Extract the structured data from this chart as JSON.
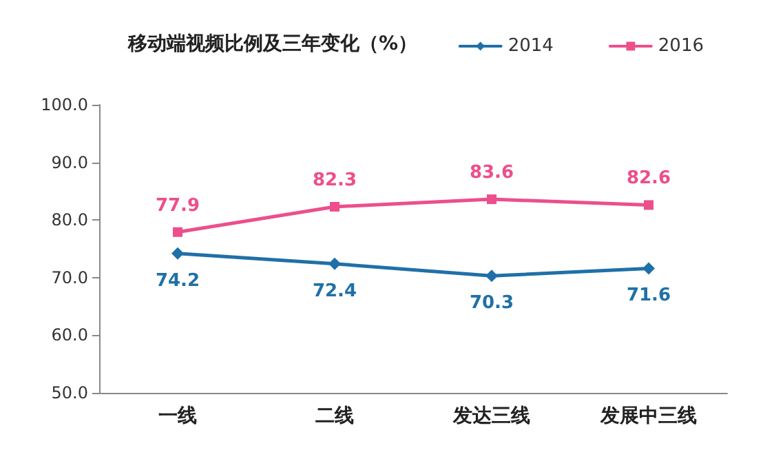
{
  "chart_data": {
    "type": "line",
    "title": "移动端视频比例及三年变化（%）",
    "categories": [
      "一线",
      "二线",
      "发达三线",
      "发展中三线"
    ],
    "series": [
      {
        "name": "2014",
        "color": "#1f70a8",
        "marker": "diamond",
        "values": [
          74.2,
          72.4,
          70.3,
          71.6
        ]
      },
      {
        "name": "2016",
        "color": "#ec4f8c",
        "marker": "square",
        "values": [
          77.9,
          82.3,
          83.6,
          82.6
        ]
      }
    ],
    "ylim": [
      50,
      100
    ],
    "yticks": [
      {
        "value": 50,
        "label": "50.0"
      },
      {
        "value": 60,
        "label": "60.0"
      },
      {
        "value": 70,
        "label": "70.0"
      },
      {
        "value": 80,
        "label": "80.0"
      },
      {
        "value": 90,
        "label": "90.0"
      },
      {
        "value": 100,
        "label": "100.0"
      }
    ],
    "legend": "top right",
    "data_labels": true,
    "grid": false
  }
}
